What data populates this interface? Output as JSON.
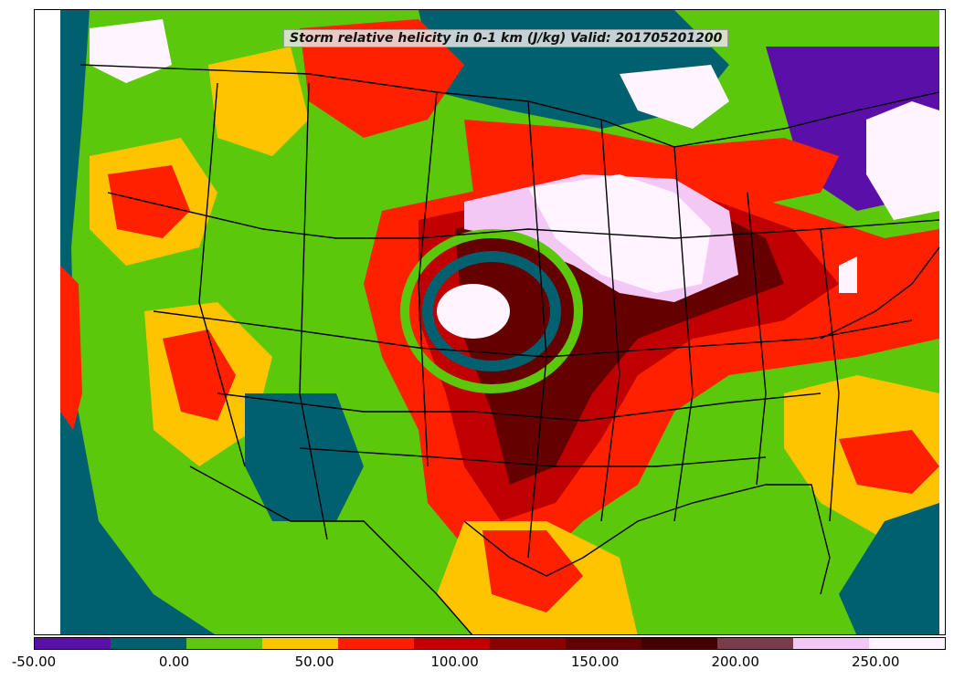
{
  "title": "Storm relative helicity in 0-1 km (J/kg) Valid: 201705201200",
  "colorbar": {
    "colors": [
      "#5a10a8",
      "#006070",
      "#5cc80c",
      "#ffc400",
      "#ff2000",
      "#c00000",
      "#8c0000",
      "#640000",
      "#440000",
      "#7a3c48",
      "#f4c8f4",
      "#fff4ff"
    ],
    "tick_labels": [
      "-50.00",
      "0.00",
      "50.00",
      "100.00",
      "150.00",
      "200.00",
      "250.00"
    ],
    "tick_values": [
      -50,
      0,
      50,
      100,
      150,
      200,
      250
    ],
    "range": [
      -50,
      275
    ]
  }
}
